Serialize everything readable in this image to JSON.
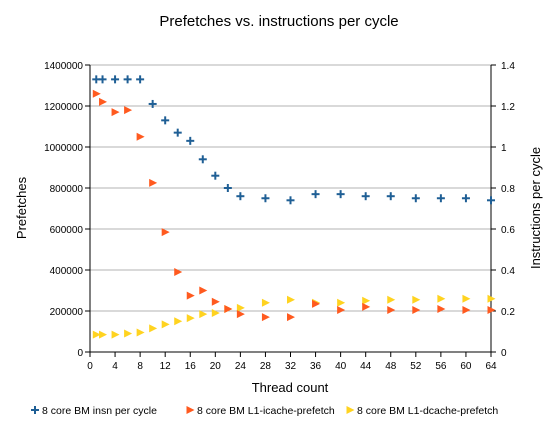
{
  "chart_data": {
    "type": "scatter",
    "title": "Prefetches vs. instructions per cycle",
    "xlabel": "Thread count",
    "ylabel_left": "Prefetches",
    "ylabel_right": "Instructions per cycle",
    "x_ticks": [
      0,
      4,
      8,
      12,
      16,
      20,
      24,
      28,
      32,
      36,
      40,
      44,
      48,
      52,
      56,
      60,
      64
    ],
    "xlim": [
      0,
      64
    ],
    "ylim_left": [
      0,
      1400000
    ],
    "y_ticks_left": [
      0,
      200000,
      400000,
      600000,
      800000,
      1000000,
      1200000,
      1400000
    ],
    "ylim_right": [
      0,
      1.4
    ],
    "y_ticks_right": [
      "0",
      "0.2",
      "0.4",
      "0.6",
      "0.8",
      "1",
      "1.2",
      "1.4"
    ],
    "grid": "horizontal",
    "legend": "bottom",
    "series": [
      {
        "name": "8 core BM insn per cycle",
        "axis": "right",
        "marker": "plus",
        "color": "#1f5f95",
        "points": [
          [
            1,
            1.33
          ],
          [
            2,
            1.33
          ],
          [
            4,
            1.33
          ],
          [
            6,
            1.33
          ],
          [
            8,
            1.33
          ],
          [
            10,
            1.21
          ],
          [
            12,
            1.13
          ],
          [
            14,
            1.07
          ],
          [
            16,
            1.03
          ],
          [
            18,
            0.94
          ],
          [
            20,
            0.86
          ],
          [
            22,
            0.8
          ],
          [
            24,
            0.76
          ],
          [
            28,
            0.75
          ],
          [
            32,
            0.74
          ],
          [
            36,
            0.77
          ],
          [
            40,
            0.77
          ],
          [
            44,
            0.76
          ],
          [
            48,
            0.76
          ],
          [
            52,
            0.75
          ],
          [
            56,
            0.75
          ],
          [
            60,
            0.75
          ],
          [
            64,
            0.74
          ]
        ]
      },
      {
        "name": "8 core BM L1-icache-prefetch",
        "axis": "left",
        "marker": "triangle",
        "color": "#ff5a1f",
        "points": [
          [
            1,
            1260000
          ],
          [
            2,
            1220000
          ],
          [
            4,
            1170000
          ],
          [
            6,
            1180000
          ],
          [
            8,
            1050000
          ],
          [
            10,
            825000
          ],
          [
            12,
            585000
          ],
          [
            14,
            390000
          ],
          [
            16,
            275000
          ],
          [
            18,
            300000
          ],
          [
            20,
            245000
          ],
          [
            22,
            210000
          ],
          [
            24,
            185000
          ],
          [
            28,
            170000
          ],
          [
            32,
            170000
          ],
          [
            36,
            235000
          ],
          [
            40,
            205000
          ],
          [
            44,
            220000
          ],
          [
            48,
            205000
          ],
          [
            52,
            205000
          ],
          [
            56,
            210000
          ],
          [
            60,
            205000
          ],
          [
            64,
            205000
          ]
        ]
      },
      {
        "name": "8 core BM L1-dcache-prefetch",
        "axis": "left",
        "marker": "triangle",
        "color": "#ffd320",
        "points": [
          [
            1,
            85000
          ],
          [
            2,
            85000
          ],
          [
            4,
            85000
          ],
          [
            6,
            90000
          ],
          [
            8,
            95000
          ],
          [
            10,
            115000
          ],
          [
            12,
            135000
          ],
          [
            14,
            150000
          ],
          [
            16,
            165000
          ],
          [
            18,
            185000
          ],
          [
            20,
            190000
          ],
          [
            22,
            210000
          ],
          [
            24,
            215000
          ],
          [
            28,
            240000
          ],
          [
            32,
            255000
          ],
          [
            36,
            240000
          ],
          [
            40,
            240000
          ],
          [
            44,
            250000
          ],
          [
            48,
            255000
          ],
          [
            52,
            255000
          ],
          [
            56,
            260000
          ],
          [
            60,
            260000
          ],
          [
            64,
            260000
          ]
        ]
      }
    ]
  }
}
